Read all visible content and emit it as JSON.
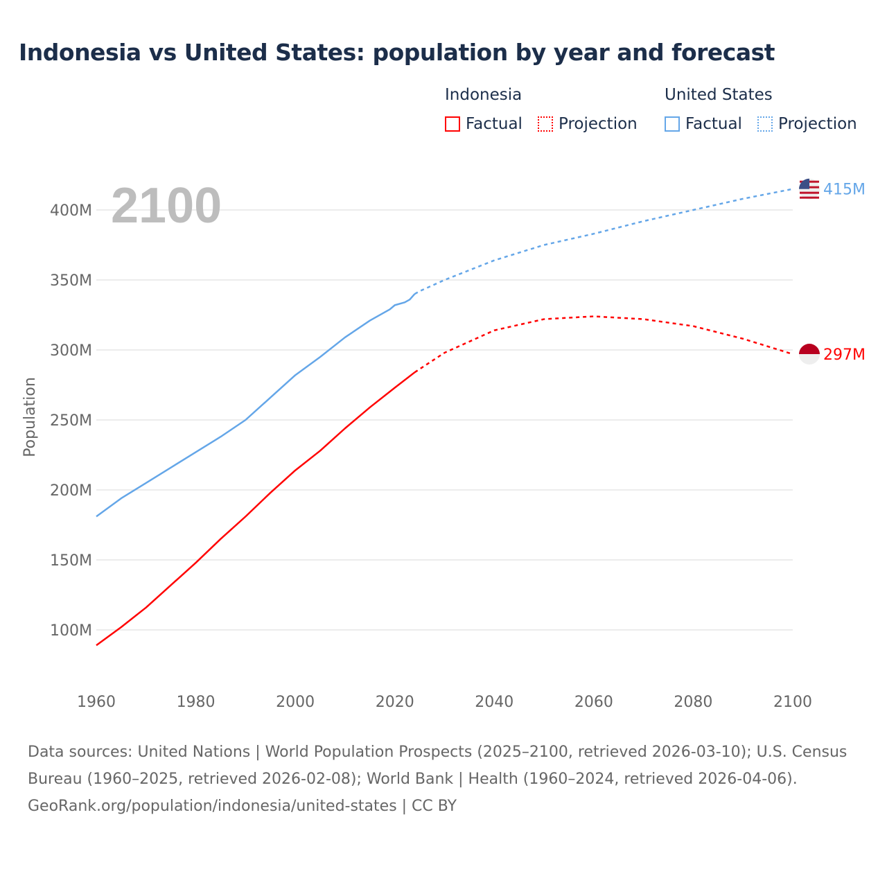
{
  "title": "Indonesia vs United States: population by year and forecast",
  "legend": {
    "groups": [
      {
        "name": "Indonesia",
        "color": "#ff0000",
        "factual": "Factual",
        "projection": "Projection"
      },
      {
        "name": "United States",
        "color": "#64a6e8",
        "factual": "Factual",
        "projection": "Projection"
      }
    ]
  },
  "footer": {
    "sources": "Data sources: United Nations | World Population Prospects (2025–2100, retrieved 2026-03-10); U.S. Census Bureau (1960–2025, retrieved 2026-02-08); World Bank | Health (1960–2024, retrieved 2026-04-06).",
    "credit": "GeoRank.org/population/indonesia/united-states | CC BY"
  },
  "chart_data": {
    "type": "line",
    "title": "Indonesia vs United States: population by year and forecast",
    "year_label": "2100",
    "ylabel": "Population",
    "xlim": [
      1960,
      2100
    ],
    "ylim": [
      50,
      420
    ],
    "xticks": [
      1960,
      1980,
      2000,
      2020,
      2040,
      2060,
      2080,
      2100
    ],
    "xtick_labels": [
      "1960",
      "1980",
      "2000",
      "2020",
      "2040",
      "2060",
      "2080",
      "2100"
    ],
    "yticks": [
      100,
      150,
      200,
      250,
      300,
      350,
      400
    ],
    "ytick_labels": [
      "100M",
      "150M",
      "200M",
      "250M",
      "300M",
      "350M",
      "400M"
    ],
    "grid": true,
    "legend_placement": "top-right",
    "series": [
      {
        "name": "United States",
        "color": "#64a6e8",
        "end_label": "415M",
        "factual": {
          "x": [
            1960,
            1965,
            1970,
            1975,
            1980,
            1985,
            1990,
            1995,
            2000,
            2005,
            2010,
            2015,
            2019,
            2020,
            2022,
            2023,
            2024
          ],
          "y": [
            181,
            194,
            205,
            216,
            227,
            238,
            250,
            266,
            282,
            295,
            309,
            321,
            329,
            332,
            334,
            336,
            340
          ]
        },
        "projection": {
          "x": [
            2024,
            2025,
            2030,
            2040,
            2050,
            2060,
            2070,
            2080,
            2090,
            2100
          ],
          "y": [
            340,
            342,
            350,
            364,
            375,
            383,
            392,
            400,
            408,
            415
          ]
        }
      },
      {
        "name": "Indonesia",
        "color": "#ff0000",
        "end_label": "297M",
        "factual": {
          "x": [
            1960,
            1965,
            1970,
            1975,
            1980,
            1985,
            1990,
            1995,
            2000,
            2005,
            2010,
            2015,
            2020,
            2024
          ],
          "y": [
            89,
            102,
            116,
            132,
            148,
            165,
            181,
            198,
            214,
            228,
            244,
            259,
            273,
            284
          ]
        },
        "projection": {
          "x": [
            2024,
            2030,
            2040,
            2050,
            2060,
            2070,
            2080,
            2090,
            2100
          ],
          "y": [
            284,
            298,
            314,
            322,
            324,
            322,
            317,
            308,
            297
          ]
        }
      }
    ]
  }
}
